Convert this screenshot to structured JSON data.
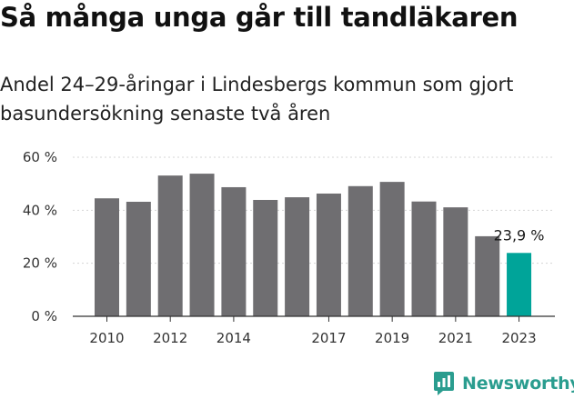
{
  "title": "Så många unga går till tandläkaren",
  "subtitle": "Andel 24–29-åringar i Lindesbergs kommun som gjort basundersökning senaste två åren",
  "brand": {
    "name": "Newsworthy",
    "logo_icon": "newsworthy-logo-icon",
    "color": "#2a9d8f"
  },
  "colors": {
    "bar": "#6f6e71",
    "highlight": "#00a499",
    "grid": "#d5d5d5",
    "axis": "#333333"
  },
  "chart_data": {
    "type": "bar",
    "title": "Så många unga går till tandläkaren",
    "subtitle": "Andel 24–29-åringar i Lindesbergs kommun som gjort basundersökning senaste två åren",
    "xlabel": "",
    "ylabel": "",
    "categories": [
      "2010",
      "2011",
      "2012",
      "2013",
      "2014",
      "2015",
      "2016",
      "2017",
      "2018",
      "2019",
      "2020",
      "2021",
      "2022",
      "2023"
    ],
    "values": [
      44.5,
      43.2,
      53.1,
      53.8,
      48.7,
      43.9,
      44.9,
      46.3,
      49.1,
      50.7,
      43.3,
      41.1,
      30.2,
      23.9
    ],
    "x_tick_labels": [
      "2010",
      "2012",
      "2014",
      "2017",
      "2019",
      "2021",
      "2023"
    ],
    "y_ticks": [
      0,
      20,
      40,
      60
    ],
    "y_tick_labels": [
      "0 %",
      "20 %",
      "40 %",
      "60 %"
    ],
    "ylim": [
      0,
      60
    ],
    "highlight_index": 13,
    "annotations": [
      {
        "index": 13,
        "text": "23,9 %"
      }
    ],
    "grid": true,
    "legend": "none"
  }
}
